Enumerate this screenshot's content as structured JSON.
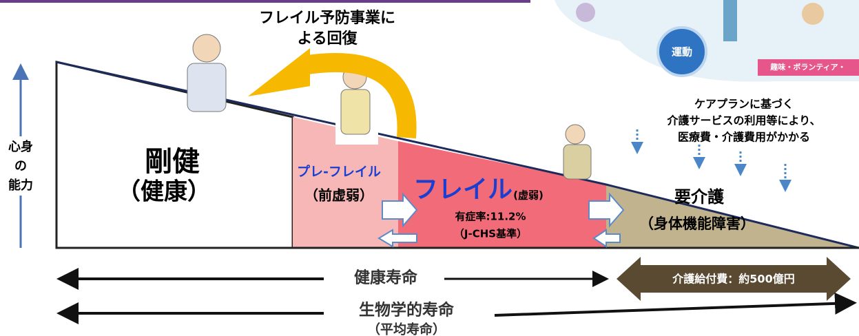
{
  "recovery_label": [
    "フレイル予防事業に",
    "よる回復"
  ],
  "y_axis_label": [
    "心身",
    "の",
    "能力"
  ],
  "stages": [
    {
      "title": "剛健",
      "subtitle": "（健康）"
    },
    {
      "title": "プレ-フレイル",
      "subtitle": "（前虚弱）"
    },
    {
      "title": "フレイル",
      "title_note": "(虚弱)",
      "prevalence": "有症率:11.2%",
      "criteria": "（J-CHS基準）"
    },
    {
      "title": "要介護",
      "subtitle": "（身体機能障害）"
    }
  ],
  "care_note": [
    "ケアプランに基づく",
    "介護サービスの利用等により、",
    "医療費・介護費用がかかる"
  ],
  "timeline": {
    "healthy_life": "健康寿命",
    "care_cost": "介護給付費：約500億円",
    "biological_life": "生物学的寿命",
    "biological_note": "（平均寿命）"
  },
  "illustration": {
    "badge": "運動",
    "banner": "趣味・ボランティア・"
  }
}
